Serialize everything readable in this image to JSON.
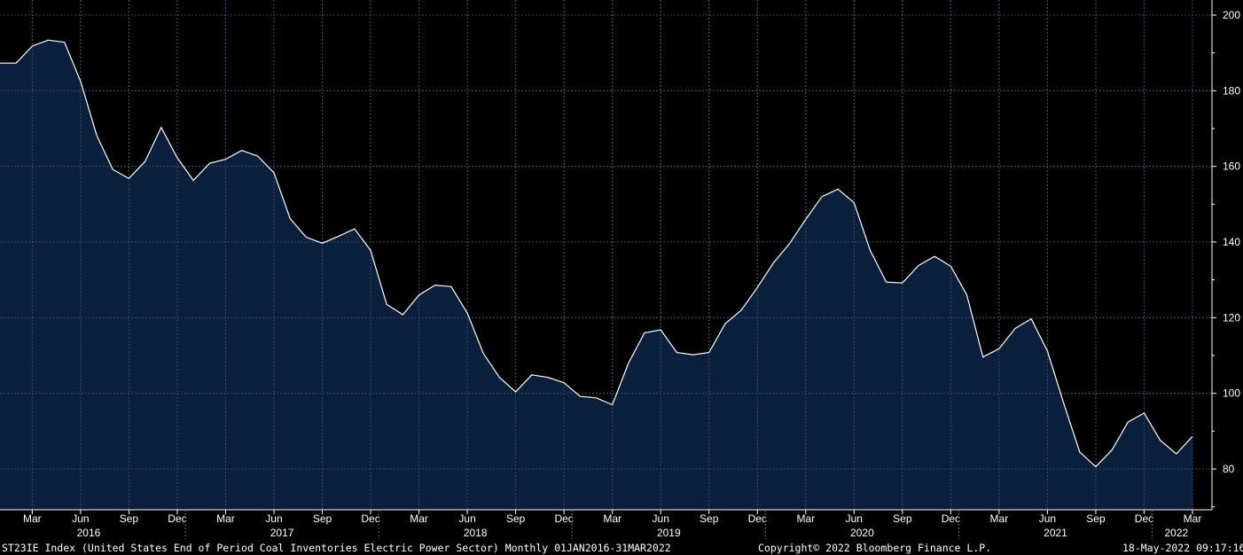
{
  "chart_data": {
    "type": "area",
    "x": [
      "2016-01",
      "2016-02",
      "2016-03",
      "2016-04",
      "2016-05",
      "2016-06",
      "2016-07",
      "2016-08",
      "2016-09",
      "2016-10",
      "2016-11",
      "2016-12",
      "2017-01",
      "2017-02",
      "2017-03",
      "2017-04",
      "2017-05",
      "2017-06",
      "2017-07",
      "2017-08",
      "2017-09",
      "2017-10",
      "2017-11",
      "2017-12",
      "2018-01",
      "2018-02",
      "2018-03",
      "2018-04",
      "2018-05",
      "2018-06",
      "2018-07",
      "2018-08",
      "2018-09",
      "2018-10",
      "2018-11",
      "2018-12",
      "2019-01",
      "2019-02",
      "2019-03",
      "2019-04",
      "2019-05",
      "2019-06",
      "2019-07",
      "2019-08",
      "2019-09",
      "2019-10",
      "2019-11",
      "2019-12",
      "2020-01",
      "2020-02",
      "2020-03",
      "2020-04",
      "2020-05",
      "2020-06",
      "2020-07",
      "2020-08",
      "2020-09",
      "2020-10",
      "2020-11",
      "2020-12",
      "2021-01",
      "2021-02",
      "2021-03",
      "2021-04",
      "2021-05",
      "2021-06",
      "2021-07",
      "2021-08",
      "2021-09",
      "2021-10",
      "2021-11",
      "2021-12",
      "2022-01",
      "2022-02",
      "2022-03"
    ],
    "values": [
      187.3,
      187.3,
      191.8,
      193.4,
      192.8,
      182.5,
      168.2,
      159.2,
      156.8,
      161.3,
      170.3,
      162.3,
      156.3,
      160.8,
      161.9,
      164.2,
      162.7,
      158.3,
      146.2,
      141.3,
      139.7,
      141.5,
      143.5,
      137.8,
      123.5,
      120.8,
      126.0,
      128.6,
      128.2,
      121.2,
      110.5,
      104.2,
      100.4,
      104.9,
      104.2,
      102.8,
      99.2,
      98.8,
      97.0,
      108.0,
      116.0,
      116.8,
      110.8,
      110.2,
      110.8,
      118.4,
      122.0,
      128.0,
      134.5,
      139.6,
      146.0,
      152.0,
      154.0,
      150.4,
      137.8,
      129.4,
      129.2,
      133.8,
      136.2,
      133.6,
      126.0,
      109.6,
      111.8,
      117.2,
      119.7,
      111.2,
      97.5,
      84.5,
      80.6,
      85.0,
      92.4,
      94.8,
      87.6,
      84.0,
      88.6
    ],
    "yticks": [
      "80",
      "100",
      "120",
      "140",
      "160",
      "180",
      "200"
    ],
    "ylim": [
      70,
      203
    ],
    "month_labels": [
      "Mar",
      "Jun",
      "Sep",
      "Dec"
    ],
    "year_labels": [
      "2016",
      "2017",
      "2018",
      "2019",
      "2020",
      "2021",
      "2022"
    ],
    "grid": true,
    "colors": {
      "fill": "#0a1f3c",
      "line": "#ffffff",
      "grid": "#6d6d6d",
      "background": "#000000"
    }
  },
  "footer": {
    "description": "ST23IE Index (United States End of Period Coal Inventories Electric Power Sector)  Monthly 01JAN2016-31MAR2022",
    "copyright": "Copyright© 2022 Bloomberg Finance L.P.",
    "timestamp": "18-May-2022 09:17:16"
  }
}
